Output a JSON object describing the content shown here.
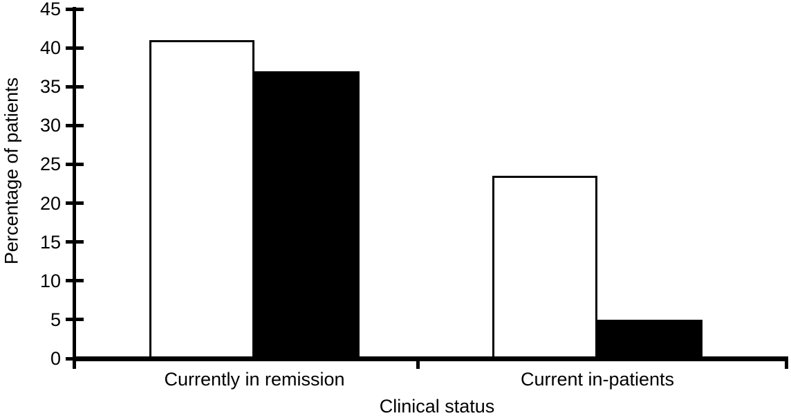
{
  "figure": {
    "background_color": "#ffffff",
    "axis_color": "#000000",
    "text_color": "#000000"
  },
  "chart_data": {
    "type": "bar",
    "title": "",
    "xlabel": "Clinical status",
    "ylabel": "Percentage of patients",
    "categories": [
      "Currently in remission",
      "Current in-patients"
    ],
    "series": [
      {
        "name": "white bars",
        "fill": "#ffffff",
        "stroke": "#000000",
        "values": [
          41,
          23.5
        ]
      },
      {
        "name": "black bars",
        "fill": "#000000",
        "stroke": "#000000",
        "values": [
          37,
          5
        ]
      }
    ],
    "ylim": [
      0,
      45
    ],
    "y_ticks": [
      0,
      5,
      10,
      15,
      20,
      25,
      30,
      35,
      40,
      45
    ],
    "grid": false,
    "legend": "none"
  }
}
